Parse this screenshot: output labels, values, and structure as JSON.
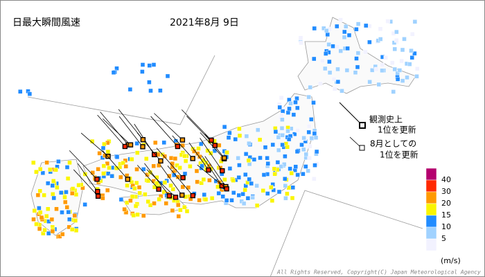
{
  "header": {
    "title": "日最大瞬間風速",
    "date": "2021年8月 9日"
  },
  "legend": {
    "colors": [
      "#b4006e",
      "#ff2800",
      "#ff9900",
      "#faf500",
      "#218cff",
      "#a0d2ff",
      "#f2f2ff"
    ],
    "ticks": [
      40,
      30,
      20,
      15,
      10,
      5
    ],
    "unit": "(m/s)"
  },
  "annotations": [
    {
      "lines": [
        "観測史上",
        "1位を更新"
      ]
    },
    {
      "lines": [
        "8月としての",
        "1位を更新"
      ]
    }
  ],
  "copyright": "All Rights Reserved, Copyright(C) Japan Meteorological Agency"
}
